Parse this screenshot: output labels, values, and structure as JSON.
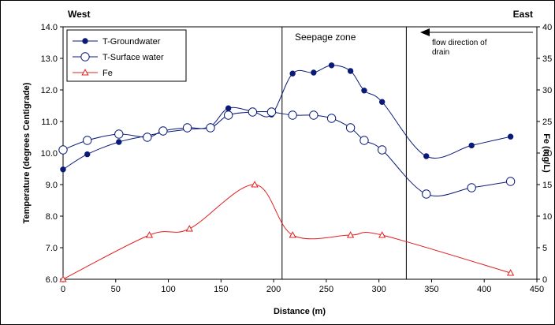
{
  "chart_data": {
    "type": "line",
    "corner_left": "West",
    "corner_right": "East",
    "xlabel": "Distance (m)",
    "ylabel": "Temperature (degrees Centigrade)",
    "y2label": "Fe (mg/L)",
    "xlim": [
      0,
      450
    ],
    "xticks": [
      0,
      50,
      100,
      150,
      200,
      250,
      300,
      350,
      400,
      450
    ],
    "ylim": [
      6.0,
      14.0
    ],
    "yticks": [
      "6.0",
      "7.0",
      "8.0",
      "9.0",
      "10.0",
      "11.0",
      "12.0",
      "13.0",
      "14.0"
    ],
    "y2lim": [
      0,
      40
    ],
    "y2ticks": [
      0,
      5,
      10,
      15,
      20,
      25,
      30,
      35,
      40
    ],
    "grid": false,
    "legend_position": "top-left",
    "zone_boundaries": [
      208,
      326
    ],
    "annotations": {
      "seepage_zone": "Seepage zone",
      "flow_line1": "flow direction of",
      "flow_line2": "drain"
    },
    "series": [
      {
        "name": "T-Groundwater",
        "axis": "left",
        "color": "#0a1a78",
        "marker": "filled-circle",
        "x": [
          0,
          23,
          53,
          80,
          95,
          118,
          140,
          157,
          180,
          198,
          218,
          238,
          255,
          273,
          286,
          303,
          345,
          388,
          425
        ],
        "y": [
          9.48,
          9.96,
          10.35,
          10.55,
          10.65,
          10.75,
          10.85,
          11.42,
          11.32,
          11.22,
          12.52,
          12.55,
          12.78,
          12.6,
          11.98,
          11.62,
          9.9,
          10.24,
          10.52
        ]
      },
      {
        "name": "T-Surface water",
        "axis": "left",
        "color": "#0a1a78",
        "marker": "open-circle",
        "x": [
          0,
          23,
          53,
          80,
          95,
          118,
          140,
          157,
          180,
          198,
          218,
          238,
          255,
          273,
          286,
          303,
          345,
          388,
          425
        ],
        "y": [
          10.1,
          10.4,
          10.6,
          10.5,
          10.7,
          10.8,
          10.8,
          11.2,
          11.3,
          11.3,
          11.2,
          11.2,
          11.1,
          10.8,
          10.4,
          10.1,
          8.7,
          8.9,
          9.1
        ]
      },
      {
        "name": "Fe",
        "axis": "right",
        "color": "#e02020",
        "marker": "open-triangle",
        "x": [
          0,
          82,
          120,
          182,
          218,
          273,
          303,
          425
        ],
        "y": [
          0,
          7,
          8,
          15,
          7,
          7,
          7,
          1
        ]
      }
    ]
  }
}
